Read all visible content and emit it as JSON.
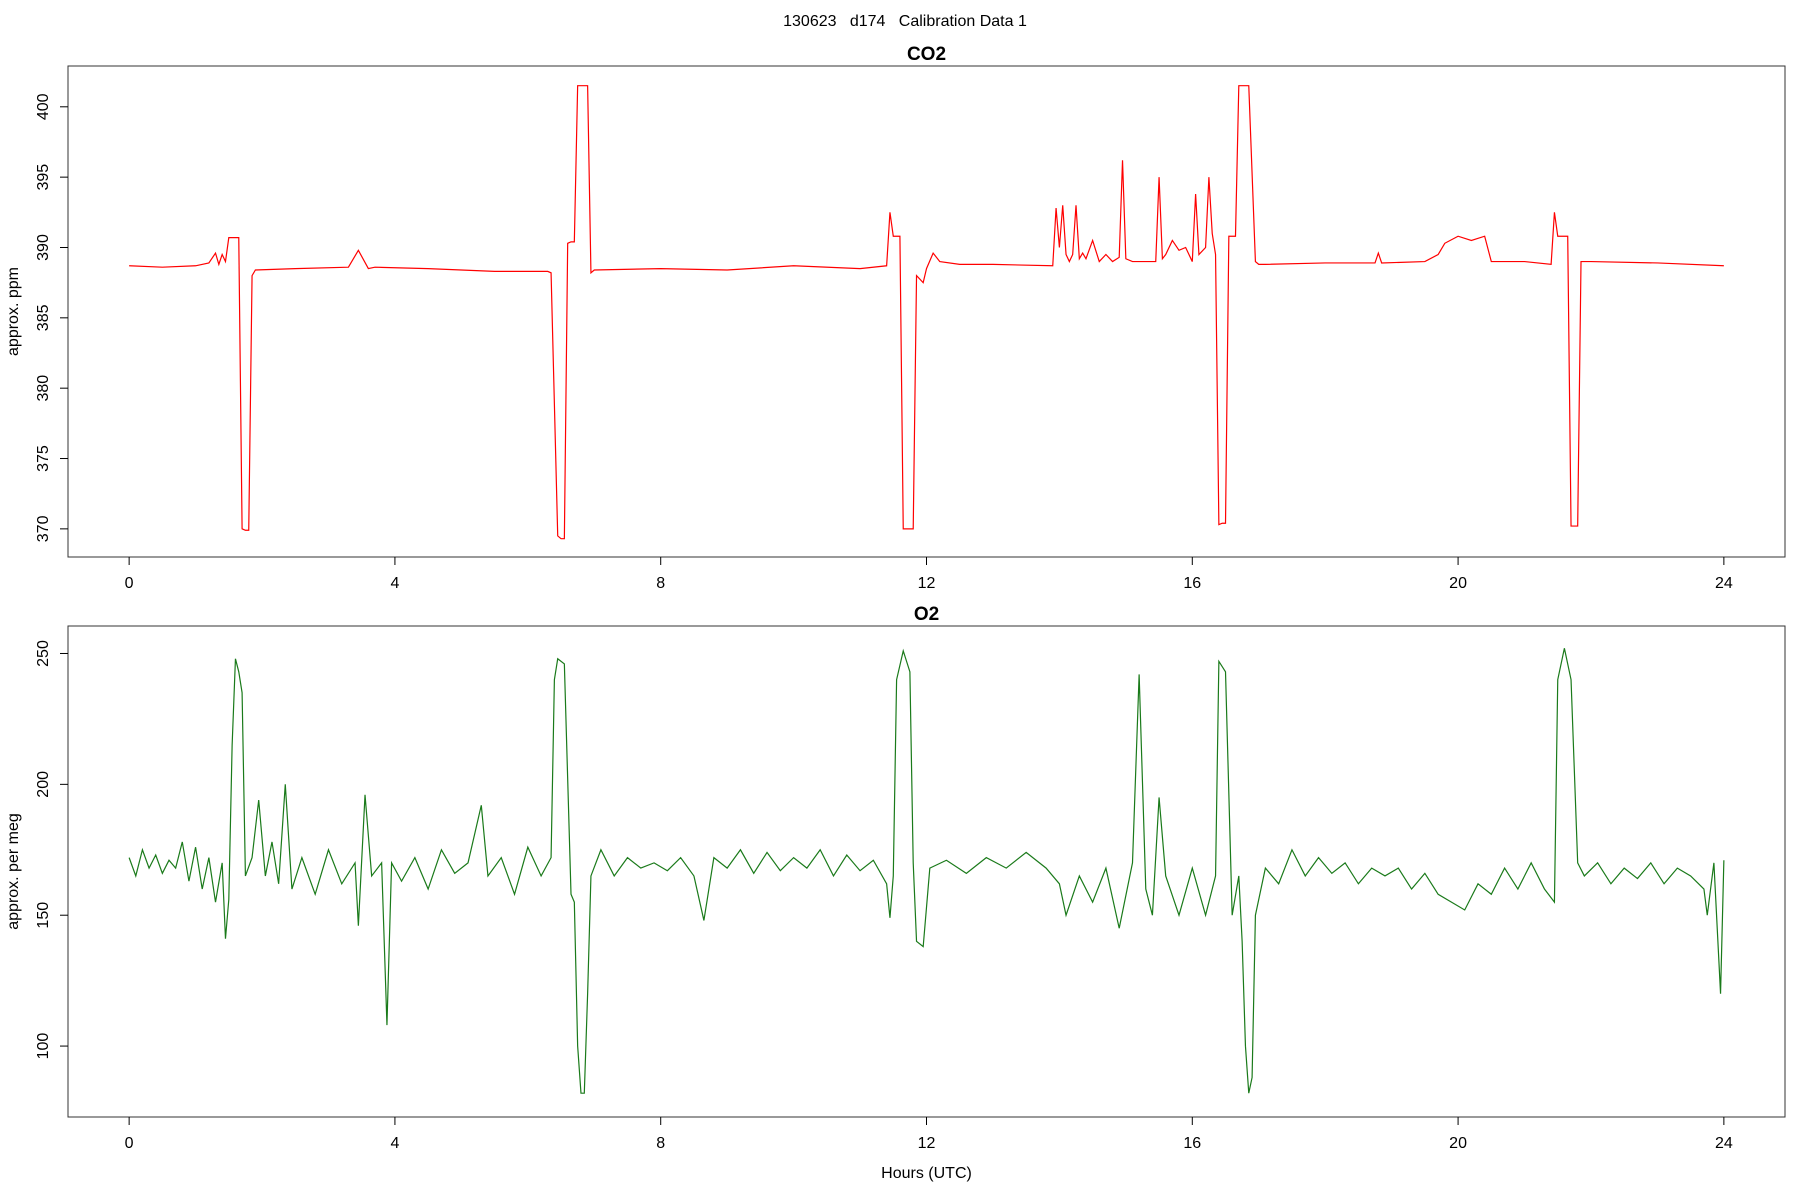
{
  "title": "130623   d174   Calibration Data 1",
  "chart_data": [
    {
      "type": "line",
      "title": "CO2",
      "ylabel": "approx. ppm",
      "grid": false,
      "xlim": [
        -0.92,
        24.92
      ],
      "xticks": [
        0,
        4,
        8,
        12,
        16,
        20,
        24
      ],
      "ylim": [
        368,
        402.9
      ],
      "yticks": [
        370,
        375,
        380,
        385,
        390,
        395,
        400
      ],
      "x": [
        0,
        0.5,
        1.0,
        1.2,
        1.3,
        1.35,
        1.4,
        1.45,
        1.5,
        1.6,
        1.65,
        1.7,
        1.75,
        1.8,
        1.85,
        1.9,
        2.5,
        3.3,
        3.45,
        3.6,
        3.7,
        4.5,
        5.5,
        6.3,
        6.35,
        6.45,
        6.5,
        6.55,
        6.6,
        6.65,
        6.7,
        6.75,
        6.8,
        6.85,
        6.9,
        6.95,
        7.0,
        8,
        9,
        10,
        11,
        11.4,
        11.45,
        11.5,
        11.55,
        11.6,
        11.65,
        11.7,
        11.75,
        11.8,
        11.85,
        11.95,
        12.0,
        12.1,
        12.2,
        12.5,
        13,
        13.9,
        13.95,
        14.0,
        14.05,
        14.1,
        14.15,
        14.2,
        14.25,
        14.3,
        14.35,
        14.4,
        14.5,
        14.6,
        14.7,
        14.8,
        14.9,
        14.95,
        15.0,
        15.1,
        15.3,
        15.45,
        15.5,
        15.55,
        15.6,
        15.7,
        15.8,
        15.9,
        16.0,
        16.05,
        16.1,
        16.2,
        16.25,
        16.3,
        16.35,
        16.4,
        16.45,
        16.5,
        16.55,
        16.6,
        16.65,
        16.7,
        16.75,
        16.8,
        16.85,
        16.95,
        17.0,
        17.1,
        18,
        18.75,
        18.8,
        18.85,
        19.5,
        19.7,
        19.8,
        20.0,
        20.2,
        20.4,
        20.5,
        21,
        21.4,
        21.45,
        21.5,
        21.6,
        21.65,
        21.7,
        21.75,
        21.8,
        21.85,
        22,
        23,
        24
      ],
      "series": [
        {
          "color": "#ff0000",
          "values": [
            388.7,
            388.6,
            388.7,
            388.9,
            389.6,
            388.8,
            389.5,
            389.0,
            390.7,
            390.7,
            390.7,
            370.0,
            369.9,
            369.9,
            388.0,
            388.4,
            388.5,
            388.6,
            389.8,
            388.5,
            388.6,
            388.5,
            388.3,
            388.3,
            388.2,
            369.5,
            369.3,
            369.3,
            390.3,
            390.4,
            390.4,
            401.5,
            401.5,
            401.5,
            401.5,
            388.2,
            388.4,
            388.5,
            388.4,
            388.7,
            388.5,
            388.7,
            392.5,
            390.8,
            390.8,
            390.8,
            370.0,
            370.0,
            370.0,
            370.0,
            388.0,
            387.5,
            388.5,
            389.6,
            389.0,
            388.8,
            388.8,
            388.7,
            392.8,
            390.0,
            393.0,
            389.5,
            389.0,
            389.5,
            393.0,
            389.2,
            389.6,
            389.2,
            390.5,
            389.0,
            389.5,
            389.0,
            389.3,
            396.2,
            389.2,
            389.0,
            389.0,
            389.0,
            395.0,
            389.2,
            389.5,
            390.5,
            389.8,
            390.0,
            389.0,
            393.8,
            389.5,
            390.0,
            395.0,
            391.0,
            389.5,
            370.3,
            370.4,
            370.4,
            390.8,
            390.8,
            390.8,
            401.5,
            401.5,
            401.5,
            401.5,
            389.0,
            388.8,
            388.8,
            388.9,
            388.9,
            389.6,
            388.9,
            389.0,
            389.5,
            390.3,
            390.8,
            390.5,
            390.8,
            389.0,
            389.0,
            388.8,
            392.5,
            390.8,
            390.8,
            390.8,
            370.2,
            370.2,
            370.2,
            389.0,
            389.0,
            388.9,
            388.7
          ]
        }
      ]
    },
    {
      "type": "line",
      "title": "O2",
      "ylabel": "approx. per meg",
      "xlabel": "Hours (UTC)",
      "grid": false,
      "xlim": [
        -0.92,
        24.92
      ],
      "xticks": [
        0,
        4,
        8,
        12,
        16,
        20,
        24
      ],
      "ylim": [
        72.9,
        260.5
      ],
      "yticks": [
        100,
        150,
        200,
        250
      ],
      "x": [
        0,
        0.1,
        0.2,
        0.3,
        0.4,
        0.5,
        0.6,
        0.7,
        0.8,
        0.9,
        1.0,
        1.1,
        1.2,
        1.3,
        1.4,
        1.45,
        1.5,
        1.55,
        1.6,
        1.65,
        1.7,
        1.75,
        1.85,
        1.95,
        2.05,
        2.15,
        2.25,
        2.35,
        2.45,
        2.6,
        2.8,
        3.0,
        3.2,
        3.4,
        3.45,
        3.55,
        3.65,
        3.8,
        3.88,
        3.95,
        4.1,
        4.3,
        4.5,
        4.7,
        4.9,
        5.1,
        5.3,
        5.4,
        5.6,
        5.8,
        6.0,
        6.2,
        6.35,
        6.4,
        6.45,
        6.55,
        6.65,
        6.7,
        6.75,
        6.8,
        6.85,
        6.9,
        6.95,
        7.1,
        7.3,
        7.5,
        7.7,
        7.9,
        8.1,
        8.3,
        8.5,
        8.65,
        8.8,
        9.0,
        9.2,
        9.4,
        9.6,
        9.8,
        10.0,
        10.2,
        10.4,
        10.6,
        10.8,
        11.0,
        11.2,
        11.4,
        11.45,
        11.5,
        11.55,
        11.65,
        11.75,
        11.8,
        11.85,
        11.95,
        12.05,
        12.3,
        12.6,
        12.9,
        13.2,
        13.5,
        13.8,
        14.0,
        14.1,
        14.3,
        14.5,
        14.7,
        14.9,
        15.1,
        15.2,
        15.3,
        15.4,
        15.5,
        15.6,
        15.8,
        16.0,
        16.2,
        16.35,
        16.4,
        16.5,
        16.6,
        16.7,
        16.75,
        16.8,
        16.85,
        16.9,
        16.95,
        17.1,
        17.3,
        17.5,
        17.7,
        17.9,
        18.1,
        18.3,
        18.5,
        18.7,
        18.9,
        19.1,
        19.3,
        19.5,
        19.7,
        19.9,
        20.1,
        20.3,
        20.5,
        20.7,
        20.9,
        21.1,
        21.3,
        21.45,
        21.5,
        21.6,
        21.7,
        21.8,
        21.9,
        22.1,
        22.3,
        22.5,
        22.7,
        22.9,
        23.1,
        23.3,
        23.5,
        23.7,
        23.75,
        23.85,
        23.95,
        24.0
      ],
      "series": [
        {
          "color": "#1a7a1a",
          "values": [
            172,
            165,
            175,
            168,
            173,
            166,
            171,
            168,
            178,
            163,
            176,
            160,
            172,
            155,
            170,
            141,
            156,
            215,
            248,
            243,
            235,
            165,
            172,
            194,
            165,
            178,
            162,
            200,
            160,
            172,
            158,
            175,
            162,
            170,
            146,
            196,
            165,
            170,
            108,
            170,
            163,
            172,
            160,
            175,
            166,
            170,
            192,
            165,
            172,
            158,
            176,
            165,
            172,
            240,
            248,
            246,
            158,
            155,
            100,
            82,
            82,
            120,
            165,
            175,
            165,
            172,
            168,
            170,
            167,
            172,
            165,
            148,
            172,
            168,
            175,
            166,
            174,
            167,
            172,
            168,
            175,
            165,
            173,
            167,
            171,
            162,
            149,
            165,
            240,
            251,
            243,
            170,
            140,
            138,
            168,
            171,
            166,
            172,
            168,
            174,
            168,
            162,
            150,
            165,
            155,
            168,
            145,
            170,
            242,
            160,
            150,
            195,
            165,
            150,
            168,
            150,
            165,
            247,
            243,
            150,
            165,
            140,
            100,
            82,
            88,
            150,
            168,
            162,
            175,
            165,
            172,
            166,
            170,
            162,
            168,
            165,
            168,
            160,
            166,
            158,
            155,
            152,
            162,
            158,
            168,
            160,
            170,
            160,
            155,
            240,
            252,
            240,
            170,
            165,
            170,
            162,
            168,
            164,
            170,
            162,
            168,
            165,
            160,
            150,
            170,
            120,
            171
          ]
        }
      ]
    }
  ]
}
